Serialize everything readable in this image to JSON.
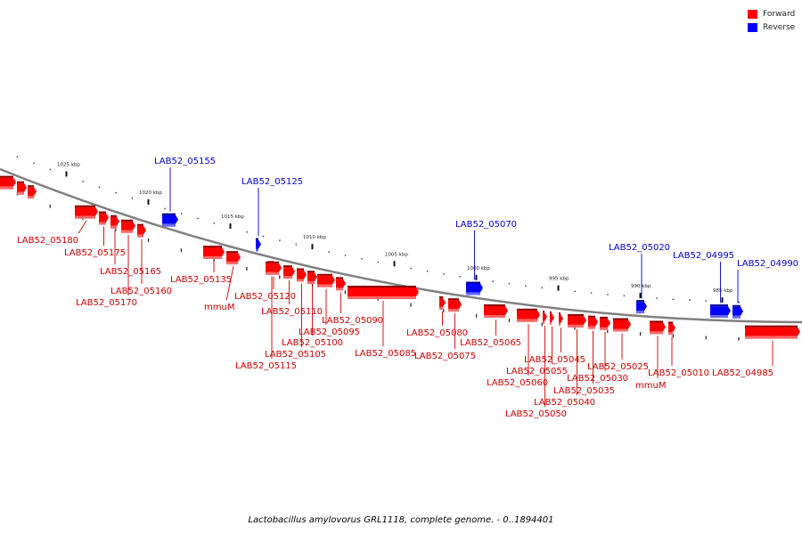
{
  "legend": [
    {
      "label": "Forward",
      "color": "#ff0000"
    },
    {
      "label": "Reverse",
      "color": "#0000ff"
    }
  ],
  "caption": "Lactobacillus amylovorus GRL1118, complete genome. - 0..1894401",
  "colors": {
    "forward": "#ff0000",
    "reverse": "#0000ff",
    "forward_label": "#cc0000",
    "reverse_label": "#0000cc"
  },
  "scale_ticks": [
    {
      "label": "1025 kbp",
      "pos_kbp": 1025
    },
    {
      "label": "1020 kbp",
      "pos_kbp": 1020
    },
    {
      "label": "1015 kbp",
      "pos_kbp": 1015
    },
    {
      "label": "1010 kbp",
      "pos_kbp": 1010
    },
    {
      "label": "1005 kbp",
      "pos_kbp": 1005
    },
    {
      "label": "1000 kbp",
      "pos_kbp": 1000
    },
    {
      "label": "995 kbp",
      "pos_kbp": 995
    },
    {
      "label": "990 kbp",
      "pos_kbp": 990
    },
    {
      "label": "985 kbp",
      "pos_kbp": 985
    }
  ],
  "genes": [
    {
      "label": "LAB52_05155",
      "strand": "reverse"
    },
    {
      "label": "LAB52_05125",
      "strand": "reverse"
    },
    {
      "label": "LAB52_05070",
      "strand": "reverse"
    },
    {
      "label": "LAB52_05020",
      "strand": "reverse"
    },
    {
      "label": "LAB52_04995",
      "strand": "reverse"
    },
    {
      "label": "LAB52_04990",
      "strand": "reverse"
    },
    {
      "label": "LAB52_05180",
      "strand": "forward"
    },
    {
      "label": "LAB52_05175",
      "strand": "forward"
    },
    {
      "label": "LAB52_05165",
      "strand": "forward"
    },
    {
      "label": "LAB52_05160",
      "strand": "forward"
    },
    {
      "label": "LAB52_05170",
      "strand": "forward"
    },
    {
      "label": "LAB52_05135",
      "strand": "forward"
    },
    {
      "label": "mmuM",
      "strand": "forward"
    },
    {
      "label": "LAB52_05120",
      "strand": "forward"
    },
    {
      "label": "LAB52_05110",
      "strand": "forward"
    },
    {
      "label": "LAB52_05090",
      "strand": "forward"
    },
    {
      "label": "LAB52_05095",
      "strand": "forward"
    },
    {
      "label": "LAB52_05100",
      "strand": "forward"
    },
    {
      "label": "LAB52_05105",
      "strand": "forward"
    },
    {
      "label": "LAB52_05115",
      "strand": "forward"
    },
    {
      "label": "LAB52_05085",
      "strand": "forward"
    },
    {
      "label": "LAB52_05080",
      "strand": "forward"
    },
    {
      "label": "LAB52_05075",
      "strand": "forward"
    },
    {
      "label": "LAB52_05065",
      "strand": "forward"
    },
    {
      "label": "LAB52_05045",
      "strand": "forward"
    },
    {
      "label": "LAB52_05055",
      "strand": "forward"
    },
    {
      "label": "LAB52_05060",
      "strand": "forward"
    },
    {
      "label": "LAB52_05025",
      "strand": "forward"
    },
    {
      "label": "LAB52_05030",
      "strand": "forward"
    },
    {
      "label": "LAB52_05035",
      "strand": "forward"
    },
    {
      "label": "LAB52_05040",
      "strand": "forward"
    },
    {
      "label": "LAB52_05050",
      "strand": "forward"
    },
    {
      "label": "LAB52_05010",
      "strand": "forward"
    },
    {
      "label": "mmuM",
      "strand": "forward"
    },
    {
      "label": "LAB52_04985",
      "strand": "forward"
    }
  ]
}
